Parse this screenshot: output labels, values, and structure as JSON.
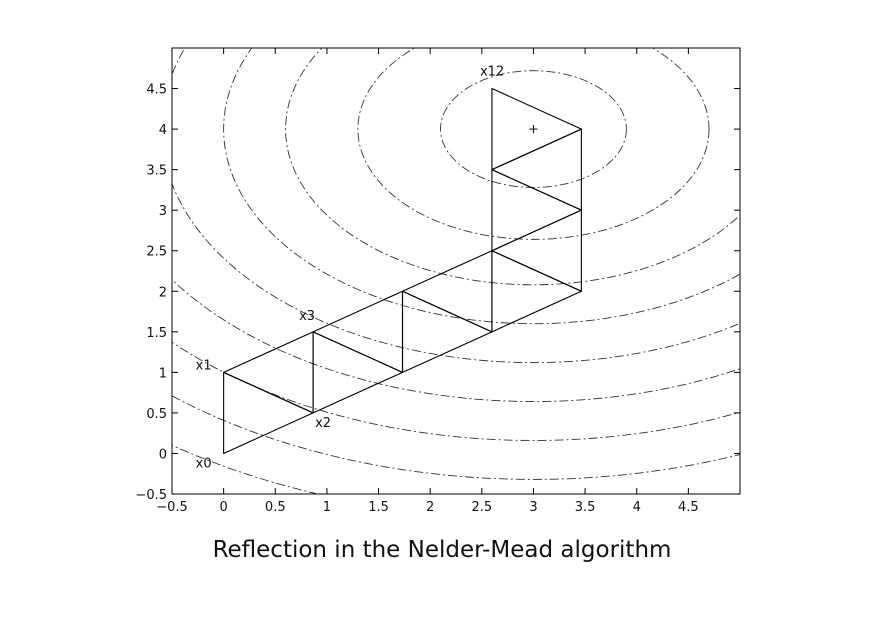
{
  "caption": "Reflection in the Nelder-Mead algorithm",
  "chart_data": {
    "type": "line",
    "title": "",
    "xlabel": "",
    "ylabel": "",
    "xlim": [
      -0.5,
      5.0
    ],
    "ylim": [
      -0.5,
      5.0
    ],
    "xticks": [
      -0.5,
      0,
      0.5,
      1,
      1.5,
      2,
      2.5,
      3,
      3.5,
      4,
      4.5
    ],
    "yticks": [
      -0.5,
      0,
      0.5,
      1,
      1.5,
      2,
      2.5,
      3,
      3.5,
      4,
      4.5
    ],
    "xtick_labels": [
      "−0.5",
      "0",
      "0.5",
      "1",
      "1.5",
      "2",
      "2.5",
      "3",
      "3.5",
      "4",
      "4.5"
    ],
    "ytick_labels": [
      "−0.5",
      "0",
      "0.5",
      "1",
      "1.5",
      "2",
      "2.5",
      "3",
      "3.5",
      "4",
      "4.5"
    ],
    "grid": false,
    "minimum": {
      "x": 3.0,
      "y": 4.0,
      "marker": "+"
    },
    "contours": {
      "center": [
        3.0,
        4.0
      ],
      "style": "dash-dot",
      "x_semi_axes": [
        0.9,
        1.7,
        2.4,
        3.0,
        3.6,
        4.2,
        4.8,
        5.4,
        6.0
      ],
      "aspect_y_over_x": 0.8
    },
    "simplex_vertices": [
      {
        "x": 0.0,
        "y": 0.0
      },
      {
        "x": 0.0,
        "y": 1.0
      },
      {
        "x": 0.866,
        "y": 0.5
      },
      {
        "x": 0.866,
        "y": 1.5
      },
      {
        "x": 1.732,
        "y": 1.0
      },
      {
        "x": 1.732,
        "y": 2.0
      },
      {
        "x": 2.598,
        "y": 1.5
      },
      {
        "x": 2.598,
        "y": 2.5
      },
      {
        "x": 3.464,
        "y": 2.0
      },
      {
        "x": 3.464,
        "y": 3.0
      },
      {
        "x": 2.598,
        "y": 3.5
      },
      {
        "x": 3.464,
        "y": 4.0
      },
      {
        "x": 2.598,
        "y": 4.5
      }
    ],
    "simplex_triangles": [
      [
        0,
        1,
        2
      ],
      [
        1,
        2,
        3
      ],
      [
        2,
        3,
        4
      ],
      [
        3,
        4,
        5
      ],
      [
        4,
        5,
        6
      ],
      [
        5,
        6,
        7
      ],
      [
        6,
        7,
        8
      ],
      [
        7,
        8,
        9
      ],
      [
        7,
        9,
        10
      ],
      [
        9,
        10,
        11
      ],
      [
        10,
        11,
        12
      ]
    ],
    "point_labels": [
      {
        "text": "x0",
        "vertex": 0,
        "pos": "below-left"
      },
      {
        "text": "x1",
        "vertex": 1,
        "pos": "left"
      },
      {
        "text": "x2",
        "vertex": 2,
        "pos": "below"
      },
      {
        "text": "x3",
        "vertex": 3,
        "pos": "above-left"
      },
      {
        "text": "x12",
        "vertex": 12,
        "pos": "above"
      }
    ]
  }
}
